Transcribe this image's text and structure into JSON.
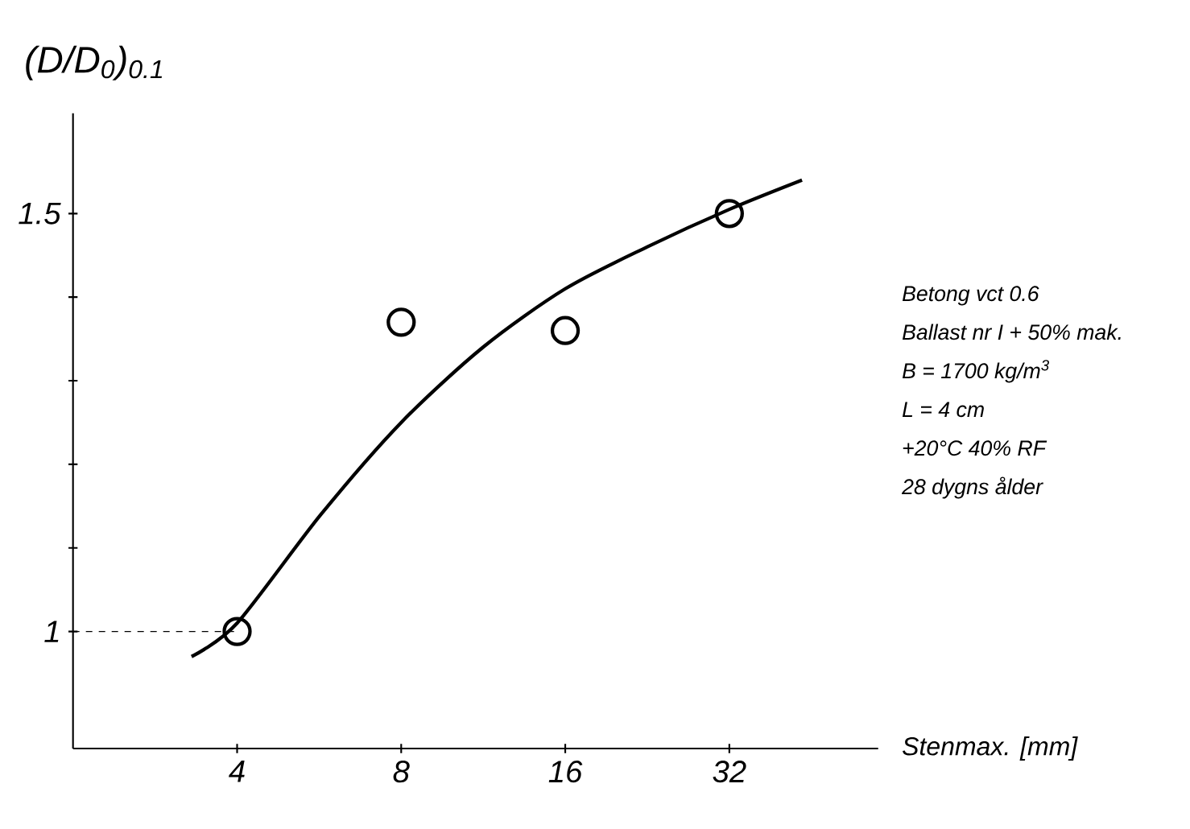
{
  "chart_data": {
    "type": "line",
    "ylabel": "(D/D$_{0}$)$_{0.1}$",
    "xlabel": "Stenmax. [mm]",
    "log": "x",
    "xlim": [
      2,
      60
    ],
    "xticks": [
      4,
      8,
      16,
      32
    ],
    "ylim": [
      0.86,
      1.62
    ],
    "yticks": [
      1,
      {
        "value": 1.1,
        "label": null
      },
      {
        "value": 1.2,
        "label": null
      },
      {
        "value": 1.3,
        "label": null
      },
      {
        "value": 1.4,
        "label": null
      },
      1.5
    ],
    "grid": false,
    "series": [
      {
        "type": "scatter",
        "marker": "circle",
        "color": "#000000",
        "x": [
          4,
          8,
          16,
          32
        ],
        "values": [
          1.0,
          1.37,
          1.36,
          1.5
        ]
      },
      {
        "marker": "none",
        "color": "#000000",
        "x": [
          3.3,
          4,
          5.7,
          8,
          11.3,
          16,
          22.6,
          32,
          43.5
        ],
        "values": [
          0.97,
          1.01,
          1.14,
          1.25,
          1.34,
          1.41,
          1.46,
          1.505,
          1.54
        ]
      }
    ],
    "ref_lines": [
      {
        "axis": "y",
        "value": 1,
        "line_style": "dashed"
      }
    ],
    "annotations": [
      "Betong vct 0.6",
      "Ballast nr I + 50% mak.",
      "B = 1700 kg/m$^{3}$",
      "L = 4 cm",
      "+20°C 40% RF",
      "28 dygns ålder"
    ]
  }
}
